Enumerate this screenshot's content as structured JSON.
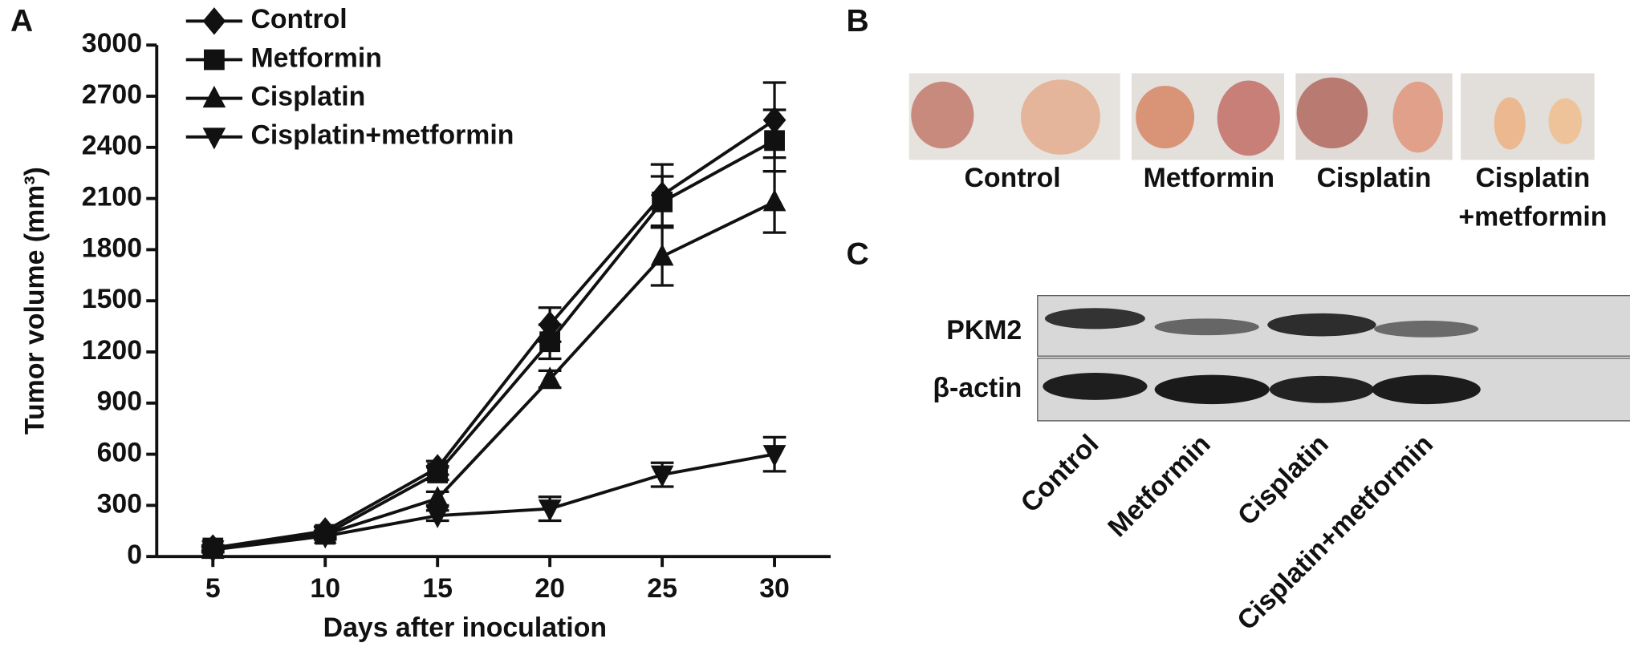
{
  "chart_data": {
    "type": "line",
    "y_label": "Tumor volume (mm³)",
    "x_label": "Days after inoculation",
    "x": [
      5,
      10,
      15,
      20,
      25,
      30
    ],
    "series": [
      {
        "name": "Control",
        "color": "#111111",
        "marker": "diamond",
        "values": [
          50,
          150,
          520,
          1360,
          2120,
          2560
        ],
        "errors": [
          15,
          25,
          40,
          100,
          180,
          220
        ]
      },
      {
        "name": "Metformin",
        "color": "#111111",
        "marker": "square",
        "values": [
          50,
          130,
          490,
          1260,
          2080,
          2440
        ],
        "errors": [
          15,
          20,
          40,
          100,
          150,
          180
        ]
      },
      {
        "name": "Cisplatin",
        "color": "#111111",
        "marker": "triangle-up",
        "values": [
          40,
          130,
          340,
          1040,
          1760,
          2080
        ],
        "errors": [
          15,
          20,
          40,
          50,
          170,
          180
        ]
      },
      {
        "name": "Cisplatin+metformin",
        "color": "#111111",
        "marker": "triangle-down",
        "values": [
          40,
          120,
          240,
          280,
          480,
          600
        ],
        "errors": [
          15,
          20,
          30,
          70,
          70,
          100
        ]
      }
    ],
    "xlim": [
      2.5,
      32.5
    ],
    "ylim": [
      0,
      3000
    ],
    "xticks": [
      5,
      10,
      15,
      20,
      25,
      30
    ],
    "yticks": [
      0,
      300,
      600,
      900,
      1200,
      1500,
      1800,
      2100,
      2400,
      2700,
      3000
    ],
    "legend": "upper-left",
    "grid": false
  },
  "panel_labels": [
    "A",
    "B",
    "C"
  ],
  "panel_b": {
    "labels": [
      [
        "Control"
      ],
      [
        "Metformin"
      ],
      [
        "Cisplatin"
      ],
      [
        "Cisplatin",
        "+metformin"
      ]
    ]
  },
  "panel_c": {
    "rows": [
      "PKM2",
      "β-actin"
    ],
    "lanes": [
      "Control",
      "Metformin",
      "Cisplatin",
      "Cisplatin+metformin"
    ]
  }
}
